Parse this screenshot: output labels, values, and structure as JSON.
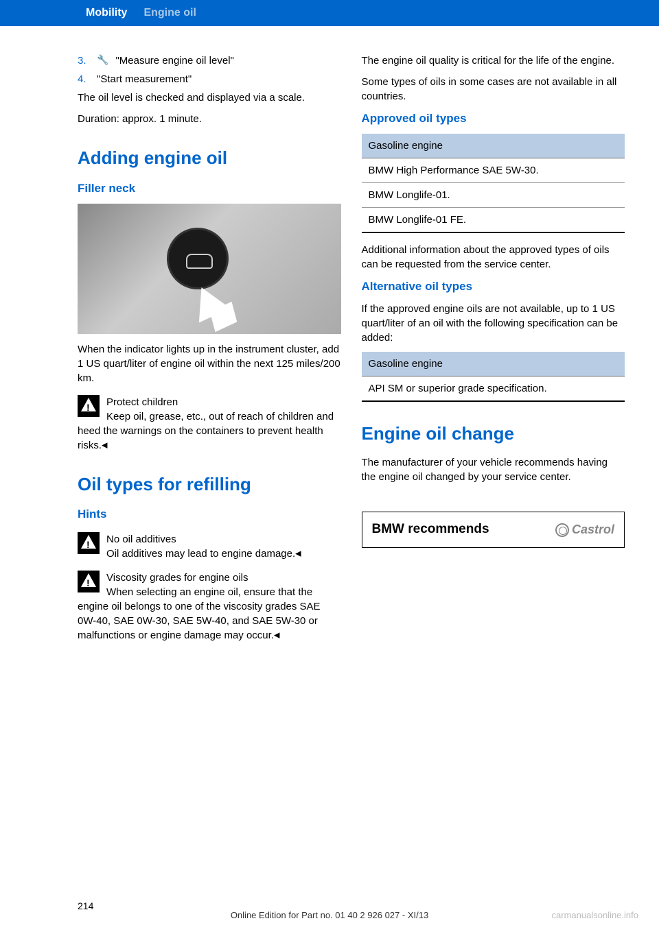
{
  "header": {
    "section": "Mobility",
    "topic": "Engine oil"
  },
  "left": {
    "list": {
      "item3_num": "3.",
      "item3_text": "\"Measure engine oil level\"",
      "item4_num": "4.",
      "item4_text": "\"Start measurement\""
    },
    "para1": "The oil level is checked and displayed via a scale.",
    "para2": "Duration: approx. 1 minute.",
    "h2_adding": "Adding engine oil",
    "h3_filler": "Filler neck",
    "para3": "When the indicator lights up in the instrument cluster, add 1 US quart/liter of engine oil within the next 125 miles/200 km.",
    "warn1_title": "Protect children",
    "warn1_body": "Keep oil, grease, etc., out of reach of chil­dren and heed the warnings on the containers to prevent health risks.",
    "h2_oiltypes": "Oil types for refilling",
    "h3_hints": "Hints",
    "warn2_title": "No oil additives",
    "warn2_body": "Oil additives may lead to engine dam­age.",
    "warn3_title": "Viscosity grades for engine oils",
    "warn3_body": "When selecting an engine oil, ensure that the engine oil belongs to one of the viscosity grades SAE 0W-40, SAE 0W-30, SAE 5W-40, and SAE 5W-30 or malfunctions or engine damage may occur."
  },
  "right": {
    "para1": "The engine oil quality is critical for the life of the engine.",
    "para2": "Some types of oils in some cases are not avail­able in all countries.",
    "h3_approved": "Approved oil types",
    "table1": {
      "header": "Gasoline engine",
      "row1": "BMW High Performance SAE 5W-30.",
      "row2": "BMW Longlife-01.",
      "row3": "BMW Longlife-01 FE."
    },
    "para3": "Additional information about the approved types of oils can be requested from the service center.",
    "h3_alternative": "Alternative oil types",
    "para4": "If the approved engine oils are not available, up to 1 US quart/liter of an oil with the following specification can be added:",
    "table2": {
      "header": "Gasoline engine",
      "row1": "API SM or superior grade specification."
    },
    "h2_change": "Engine oil change",
    "para5": "The manufacturer of your vehicle recommends having the engine oil changed by your service center.",
    "recommends": "BMW recommends",
    "castrol": "Castrol"
  },
  "footer": {
    "page": "214",
    "edition": "Online Edition for Part no. 01 40 2 926 027 - XI/13",
    "watermark": "carmanualsonline.info"
  },
  "colors": {
    "primary_blue": "#0066cc",
    "header_light": "#a8c8e8",
    "table_header_bg": "#b8cce4"
  }
}
